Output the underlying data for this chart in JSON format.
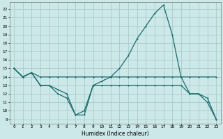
{
  "xlabel": "Humidex (Indice chaleur)",
  "bg_color": "#cce8e8",
  "grid_color": "#aacccc",
  "line_color": "#1a6b6b",
  "xlim": [
    -0.5,
    23.5
  ],
  "ylim": [
    8.5,
    22.8
  ],
  "xticks": [
    0,
    1,
    2,
    3,
    4,
    5,
    6,
    7,
    8,
    9,
    10,
    11,
    12,
    13,
    14,
    15,
    16,
    17,
    18,
    19,
    20,
    21,
    22,
    23
  ],
  "yticks": [
    9,
    10,
    11,
    12,
    13,
    14,
    15,
    16,
    17,
    18,
    19,
    20,
    21,
    22
  ],
  "line1_x": [
    0,
    1,
    2,
    3,
    4,
    5,
    6,
    7,
    8,
    9,
    10,
    11,
    12,
    13,
    14,
    15,
    16,
    17,
    18,
    19,
    20,
    21,
    22,
    23
  ],
  "line1_y": [
    15,
    14,
    14.5,
    14,
    14,
    14,
    14,
    14,
    14,
    14,
    14,
    14,
    14,
    14,
    14,
    14,
    14,
    14,
    14,
    14,
    14,
    14,
    14,
    14
  ],
  "line2_x": [
    0,
    1,
    2,
    3,
    4,
    5,
    6,
    7,
    8,
    9,
    10,
    11,
    12,
    13,
    14,
    15,
    16,
    17,
    18,
    19,
    20,
    21,
    22,
    23
  ],
  "line2_y": [
    15,
    14,
    14.5,
    13,
    13,
    12.5,
    12,
    9.5,
    10,
    13,
    13.5,
    14,
    15,
    16.5,
    18.5,
    20,
    21.5,
    22.5,
    19,
    14,
    12,
    12,
    11,
    9
  ],
  "line3_x": [
    0,
    1,
    2,
    3,
    4,
    5,
    6,
    7,
    8,
    9,
    10,
    11,
    12,
    13,
    14,
    15,
    16,
    17,
    18,
    19,
    20,
    21,
    22,
    23
  ],
  "line3_y": [
    15,
    14,
    14.5,
    13,
    13,
    12,
    11.5,
    9.5,
    9.5,
    13,
    13,
    13,
    13,
    13,
    13,
    13,
    13,
    13,
    13,
    13,
    12,
    12,
    11.5,
    9
  ]
}
